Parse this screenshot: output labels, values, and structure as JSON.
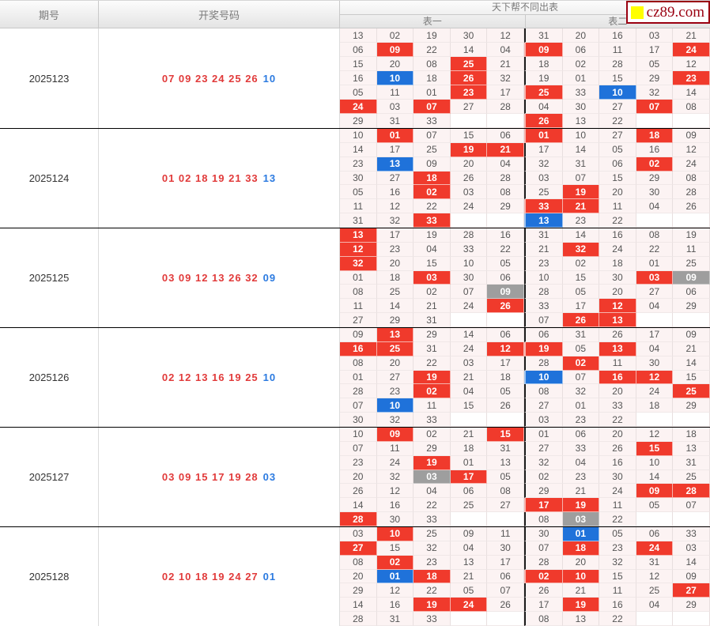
{
  "header": {
    "col_period": "期号",
    "col_numbers": "开奖号码",
    "grid_title": "天下帮不同出表",
    "sub_table1": "表一",
    "sub_table2": "表二",
    "logo_text": "cz89.com"
  },
  "colors": {
    "red_cell": "#f03a2c",
    "blue_cell": "#1f72da",
    "gray_cell": "#9e9e9e",
    "cell_bg": "#fcf3f3",
    "red_number": "#e13a3a",
    "blue_number": "#2b7ae0",
    "logo_red": "#9a0011",
    "logo_yellow": "#ffff00"
  },
  "groups": [
    {
      "period": "2025123",
      "red_numbers": "07 09 23 24 25 26",
      "blue_number": "10",
      "table1": [
        [
          "13",
          "02",
          "19",
          "30",
          "12"
        ],
        [
          "06",
          "09r",
          "22",
          "14",
          "04"
        ],
        [
          "15",
          "20",
          "08",
          "25r",
          "21"
        ],
        [
          "16",
          "10b",
          "18",
          "26r",
          "32"
        ],
        [
          "05",
          "11",
          "01",
          "23r",
          "17"
        ],
        [
          "24r",
          "03",
          "07r",
          "27",
          "28"
        ],
        [
          "29",
          "31",
          "33",
          "",
          ""
        ]
      ],
      "table2": [
        [
          "31",
          "20",
          "16",
          "03",
          "21"
        ],
        [
          "09r",
          "06",
          "11",
          "17",
          "24r"
        ],
        [
          "18",
          "02",
          "28",
          "05",
          "12"
        ],
        [
          "19",
          "01",
          "15",
          "29",
          "23r"
        ],
        [
          "25r",
          "33",
          "10b",
          "32",
          "14"
        ],
        [
          "04",
          "30",
          "27",
          "07r",
          "08"
        ],
        [
          "26r",
          "13",
          "22",
          "",
          ""
        ]
      ]
    },
    {
      "period": "2025124",
      "red_numbers": "01 02 18 19 21 33",
      "blue_number": "13",
      "table1": [
        [
          "10",
          "01r",
          "07",
          "15",
          "06"
        ],
        [
          "14",
          "17",
          "25",
          "19r",
          "21r"
        ],
        [
          "23",
          "13b",
          "09",
          "20",
          "04"
        ],
        [
          "30",
          "27",
          "18r",
          "26",
          "28"
        ],
        [
          "05",
          "16",
          "02r",
          "03",
          "08"
        ],
        [
          "11",
          "12",
          "22",
          "24",
          "29"
        ],
        [
          "31",
          "32",
          "33r",
          "",
          ""
        ]
      ],
      "table2": [
        [
          "01r",
          "10",
          "27",
          "18r",
          "09"
        ],
        [
          "17",
          "14",
          "05",
          "16",
          "12"
        ],
        [
          "32",
          "31",
          "06",
          "02r",
          "24"
        ],
        [
          "03",
          "07",
          "15",
          "29",
          "08"
        ],
        [
          "25",
          "19r",
          "20",
          "30",
          "28"
        ],
        [
          "33r",
          "21r",
          "11",
          "04",
          "26"
        ],
        [
          "13b",
          "23",
          "22",
          "",
          ""
        ]
      ]
    },
    {
      "period": "2025125",
      "red_numbers": "03 09 12 13 26 32",
      "blue_number": "09",
      "table1": [
        [
          "13r",
          "17",
          "19",
          "28",
          "16"
        ],
        [
          "12r",
          "23",
          "04",
          "33",
          "22"
        ],
        [
          "32r",
          "20",
          "15",
          "10",
          "05"
        ],
        [
          "01",
          "18",
          "03r",
          "30",
          "06"
        ],
        [
          "08",
          "25",
          "02",
          "07",
          "09g"
        ],
        [
          "11",
          "14",
          "21",
          "24",
          "26r"
        ],
        [
          "27",
          "29",
          "31",
          "",
          ""
        ]
      ],
      "table2": [
        [
          "31",
          "14",
          "16",
          "08",
          "19"
        ],
        [
          "21",
          "32r",
          "24",
          "22",
          "11"
        ],
        [
          "23",
          "02",
          "18",
          "01",
          "25"
        ],
        [
          "10",
          "15",
          "30",
          "03r",
          "09g"
        ],
        [
          "28",
          "05",
          "20",
          "27",
          "06"
        ],
        [
          "33",
          "17",
          "12r",
          "04",
          "29"
        ],
        [
          "07",
          "26r",
          "13r",
          "",
          ""
        ]
      ]
    },
    {
      "period": "2025126",
      "red_numbers": "02 12 13 16 19 25",
      "blue_number": "10",
      "table1": [
        [
          "09",
          "13r",
          "29",
          "14",
          "06"
        ],
        [
          "16r",
          "25r",
          "31",
          "24",
          "12r"
        ],
        [
          "08",
          "20",
          "22",
          "03",
          "17"
        ],
        [
          "01",
          "27",
          "19r",
          "21",
          "18"
        ],
        [
          "28",
          "23",
          "02r",
          "04",
          "05"
        ],
        [
          "07",
          "10b",
          "11",
          "15",
          "26"
        ],
        [
          "30",
          "32",
          "33",
          "",
          ""
        ]
      ],
      "table2": [
        [
          "06",
          "31",
          "26",
          "17",
          "09"
        ],
        [
          "19r",
          "05",
          "13r",
          "04",
          "21"
        ],
        [
          "28",
          "02r",
          "11",
          "30",
          "14"
        ],
        [
          "10b",
          "07",
          "16r",
          "12r",
          "15"
        ],
        [
          "08",
          "32",
          "20",
          "24",
          "25r"
        ],
        [
          "27",
          "01",
          "33",
          "18",
          "29"
        ],
        [
          "03",
          "23",
          "22",
          "",
          ""
        ]
      ]
    },
    {
      "period": "2025127",
      "red_numbers": "03 09 15 17 19 28",
      "blue_number": "03",
      "table1": [
        [
          "10",
          "09r",
          "02",
          "21",
          "15r"
        ],
        [
          "07",
          "11",
          "29",
          "18",
          "31"
        ],
        [
          "23",
          "24",
          "19r",
          "01",
          "13"
        ],
        [
          "20",
          "32",
          "03g",
          "17r",
          "05"
        ],
        [
          "26",
          "12",
          "04",
          "06",
          "08"
        ],
        [
          "14",
          "16",
          "22",
          "25",
          "27"
        ],
        [
          "28r",
          "30",
          "33",
          "",
          ""
        ]
      ],
      "table2": [
        [
          "01",
          "06",
          "20",
          "12",
          "18"
        ],
        [
          "27",
          "33",
          "26",
          "15r",
          "13"
        ],
        [
          "32",
          "04",
          "16",
          "10",
          "31"
        ],
        [
          "02",
          "23",
          "30",
          "14",
          "25"
        ],
        [
          "29",
          "21",
          "24",
          "09r",
          "28r"
        ],
        [
          "17r",
          "19r",
          "11",
          "05",
          "07"
        ],
        [
          "08",
          "03g",
          "22",
          "",
          ""
        ]
      ]
    },
    {
      "period": "2025128",
      "red_numbers": "02 10 18 19 24 27",
      "blue_number": "01",
      "table1": [
        [
          "03",
          "10r",
          "25",
          "09",
          "11"
        ],
        [
          "27r",
          "15",
          "32",
          "04",
          "30"
        ],
        [
          "08",
          "02r",
          "23",
          "13",
          "17"
        ],
        [
          "20",
          "01b",
          "18r",
          "21",
          "06"
        ],
        [
          "29",
          "12",
          "22",
          "05",
          "07"
        ],
        [
          "14",
          "16",
          "19r",
          "24r",
          "26"
        ],
        [
          "28",
          "31",
          "33",
          "",
          ""
        ]
      ],
      "table2": [
        [
          "30",
          "01b",
          "05",
          "06",
          "33"
        ],
        [
          "07",
          "18r",
          "23",
          "24r",
          "03"
        ],
        [
          "28",
          "20",
          "32",
          "31",
          "14"
        ],
        [
          "02r",
          "10r",
          "15",
          "12",
          "09"
        ],
        [
          "26",
          "21",
          "11",
          "25",
          "27r"
        ],
        [
          "17",
          "19r",
          "16",
          "04",
          "29"
        ],
        [
          "08",
          "13",
          "22",
          "",
          ""
        ]
      ]
    }
  ]
}
